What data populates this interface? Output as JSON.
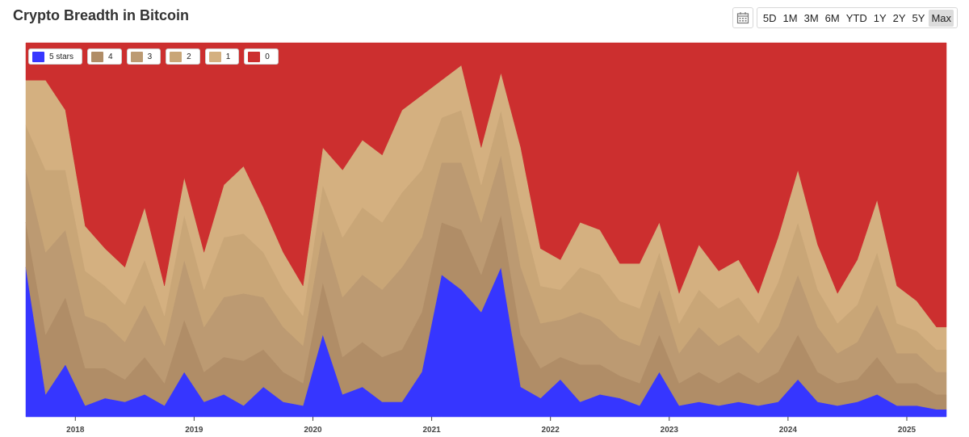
{
  "title": "Crypto Breadth in Bitcoin",
  "toolbar": {
    "calendar_icon": "calendar-icon",
    "ranges": [
      "5D",
      "1M",
      "3M",
      "6M",
      "YTD",
      "1Y",
      "2Y",
      "5Y",
      "Max"
    ],
    "active_range": "Max"
  },
  "chart_data": {
    "type": "area",
    "stacked": true,
    "normalized_percent": true,
    "x_range": [
      "2017-08",
      "2025-05"
    ],
    "xticks": [
      "2018",
      "2019",
      "2020",
      "2021",
      "2022",
      "2023",
      "2024",
      "2025"
    ],
    "legend_placement": "top-left",
    "grid": false,
    "x": [
      "2017-08",
      "2017-10",
      "2017-12",
      "2018-02",
      "2018-04",
      "2018-06",
      "2018-08",
      "2018-10",
      "2018-12",
      "2019-02",
      "2019-04",
      "2019-06",
      "2019-08",
      "2019-10",
      "2019-12",
      "2020-02",
      "2020-04",
      "2020-06",
      "2020-08",
      "2020-10",
      "2020-12",
      "2021-02",
      "2021-04",
      "2021-06",
      "2021-08",
      "2021-10",
      "2021-12",
      "2022-02",
      "2022-04",
      "2022-06",
      "2022-08",
      "2022-10",
      "2022-12",
      "2023-02",
      "2023-04",
      "2023-06",
      "2023-08",
      "2023-10",
      "2023-12",
      "2024-02",
      "2024-04",
      "2024-06",
      "2024-08",
      "2024-10",
      "2024-12",
      "2025-02",
      "2025-04"
    ],
    "series": [
      {
        "name": "5 stars",
        "color": "#3636ff",
        "values": [
          40,
          6,
          14,
          3,
          5,
          4,
          6,
          3,
          12,
          4,
          6,
          3,
          8,
          4,
          3,
          22,
          6,
          8,
          4,
          4,
          12,
          38,
          34,
          28,
          40,
          8,
          5,
          10,
          4,
          6,
          5,
          3,
          12,
          3,
          4,
          3,
          4,
          3,
          4,
          10,
          4,
          3,
          4,
          6,
          3,
          3,
          2
        ]
      },
      {
        "name": "4",
        "color": "#b08d67",
        "values": [
          12,
          16,
          18,
          10,
          8,
          6,
          10,
          6,
          14,
          8,
          10,
          12,
          10,
          8,
          6,
          14,
          10,
          12,
          12,
          14,
          16,
          14,
          16,
          10,
          14,
          14,
          8,
          6,
          10,
          8,
          6,
          6,
          10,
          6,
          8,
          6,
          8,
          6,
          8,
          12,
          8,
          6,
          6,
          10,
          6,
          6,
          4
        ]
      },
      {
        "name": "3",
        "color": "#bc9a72",
        "values": [
          14,
          22,
          18,
          14,
          12,
          10,
          14,
          10,
          16,
          12,
          16,
          18,
          14,
          12,
          10,
          14,
          16,
          18,
          18,
          22,
          20,
          16,
          18,
          14,
          16,
          18,
          12,
          10,
          14,
          12,
          10,
          10,
          12,
          8,
          12,
          10,
          10,
          8,
          12,
          16,
          12,
          8,
          10,
          14,
          8,
          8,
          6
        ]
      },
      {
        "name": "2",
        "color": "#c9a677",
        "values": [
          12,
          22,
          16,
          12,
          10,
          10,
          12,
          8,
          12,
          10,
          16,
          16,
          12,
          10,
          8,
          12,
          16,
          18,
          18,
          20,
          18,
          12,
          14,
          10,
          12,
          16,
          10,
          8,
          12,
          12,
          10,
          10,
          10,
          8,
          10,
          10,
          10,
          8,
          12,
          14,
          10,
          8,
          10,
          14,
          8,
          6,
          6
        ]
      },
      {
        "name": "1",
        "color": "#d4b080",
        "values": [
          12,
          24,
          16,
          12,
          10,
          10,
          14,
          8,
          10,
          10,
          14,
          18,
          12,
          10,
          8,
          10,
          18,
          18,
          18,
          22,
          20,
          10,
          12,
          10,
          10,
          16,
          10,
          8,
          12,
          12,
          10,
          12,
          8,
          8,
          12,
          10,
          10,
          8,
          12,
          14,
          12,
          8,
          12,
          14,
          10,
          8,
          6
        ]
      },
      {
        "name": "0",
        "color": "#cc2f2f",
        "values": [
          10,
          10,
          18,
          49,
          55,
          60,
          44,
          65,
          36,
          56,
          38,
          33,
          44,
          56,
          65,
          28,
          34,
          26,
          30,
          18,
          14,
          10,
          6,
          28,
          8,
          28,
          55,
          58,
          48,
          50,
          59,
          59,
          48,
          67,
          54,
          61,
          58,
          67,
          52,
          34,
          54,
          67,
          58,
          42,
          65,
          69,
          76
        ]
      }
    ]
  },
  "chart_style": {
    "plot_bg": "#ffffff",
    "tick_color": "#444444"
  }
}
